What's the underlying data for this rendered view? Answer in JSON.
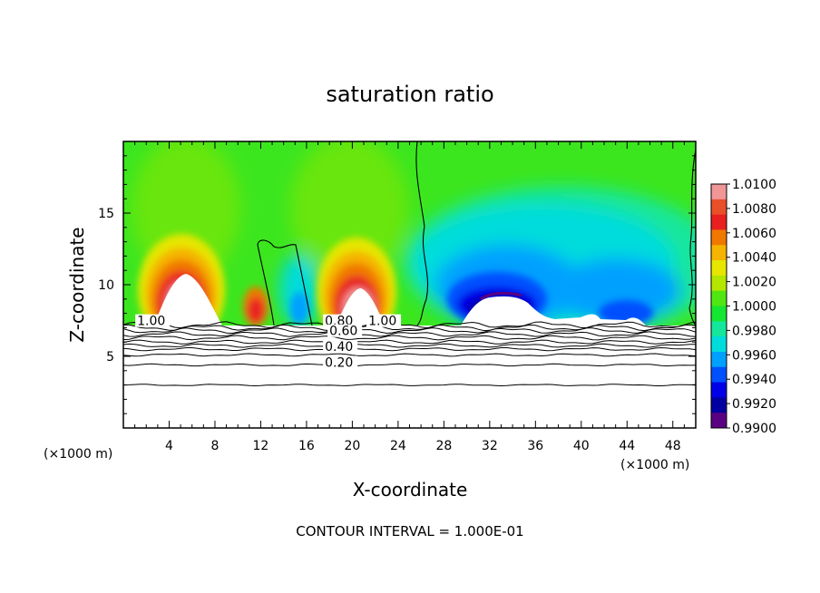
{
  "chart_data": {
    "type": "contour",
    "title": "saturation ratio",
    "xlabel": "X-coordinate",
    "ylabel": "Z-coordinate",
    "x_unit_left": "(×1000 m)",
    "x_unit_right": "(×1000 m)",
    "xlim": [
      0,
      50
    ],
    "ylim": [
      0,
      20
    ],
    "x_ticks": [
      "4",
      "8",
      "12",
      "16",
      "20",
      "24",
      "28",
      "32",
      "36",
      "40",
      "44",
      "48"
    ],
    "x_tick_values": [
      4,
      8,
      12,
      16,
      20,
      24,
      28,
      32,
      36,
      40,
      44,
      48
    ],
    "y_ticks": [
      "5",
      "10",
      "15"
    ],
    "y_tick_values": [
      5,
      10,
      15
    ],
    "footer": "CONTOUR INTERVAL = 1.000E-01",
    "colorbar": {
      "labels": [
        "1.0100",
        "1.0080",
        "1.0060",
        "1.0040",
        "1.0020",
        "1.0000",
        "0.9980",
        "0.9960",
        "0.9940",
        "0.9920",
        "0.9900"
      ],
      "colors": [
        "#f09696",
        "#e8502a",
        "#e82020",
        "#f07800",
        "#f5b400",
        "#e6e600",
        "#b4e600",
        "#50e614",
        "#14e632",
        "#14e69b",
        "#00dcdc",
        "#00a0ff",
        "#0050ff",
        "#0000e6",
        "#0000a0",
        "#5a0082"
      ]
    },
    "contour_labels": [
      {
        "text": "1.00",
        "x": 1.2,
        "z": 7.3
      },
      {
        "text": "0.80",
        "x": 17.6,
        "z": 7.3
      },
      {
        "text": "1.00",
        "x": 21.4,
        "z": 7.3
      },
      {
        "text": "0.60",
        "x": 18.0,
        "z": 6.6
      },
      {
        "text": "0.40",
        "x": 17.6,
        "z": 5.5
      },
      {
        "text": "0.20",
        "x": 17.6,
        "z": 4.4
      }
    ]
  },
  "colors": {
    "background": "#ffffff",
    "axis": "#000000"
  }
}
